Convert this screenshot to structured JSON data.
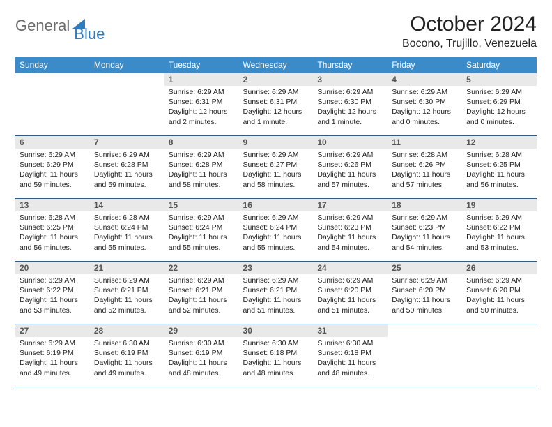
{
  "brand": {
    "text1": "General",
    "text2": "Blue"
  },
  "title": "October 2024",
  "location": "Bocono, Trujillo, Venezuela",
  "colors": {
    "header_bg": "#3b8bc8",
    "header_text": "#ffffff",
    "daynum_bg": "#e9e9e9",
    "border": "#2f5b84",
    "brand_gray": "#6b6b6b",
    "brand_blue": "#2f7bbf"
  },
  "fonts": {
    "title_size": 30,
    "location_size": 16,
    "dayhead_size": 12,
    "body_size": 10.5
  },
  "day_headers": [
    "Sunday",
    "Monday",
    "Tuesday",
    "Wednesday",
    "Thursday",
    "Friday",
    "Saturday"
  ],
  "weeks": [
    [
      {
        "n": "",
        "sr": "",
        "ss": "",
        "dl": ""
      },
      {
        "n": "",
        "sr": "",
        "ss": "",
        "dl": ""
      },
      {
        "n": "1",
        "sr": "Sunrise: 6:29 AM",
        "ss": "Sunset: 6:31 PM",
        "dl": "Daylight: 12 hours and 2 minutes."
      },
      {
        "n": "2",
        "sr": "Sunrise: 6:29 AM",
        "ss": "Sunset: 6:31 PM",
        "dl": "Daylight: 12 hours and 1 minute."
      },
      {
        "n": "3",
        "sr": "Sunrise: 6:29 AM",
        "ss": "Sunset: 6:30 PM",
        "dl": "Daylight: 12 hours and 1 minute."
      },
      {
        "n": "4",
        "sr": "Sunrise: 6:29 AM",
        "ss": "Sunset: 6:30 PM",
        "dl": "Daylight: 12 hours and 0 minutes."
      },
      {
        "n": "5",
        "sr": "Sunrise: 6:29 AM",
        "ss": "Sunset: 6:29 PM",
        "dl": "Daylight: 12 hours and 0 minutes."
      }
    ],
    [
      {
        "n": "6",
        "sr": "Sunrise: 6:29 AM",
        "ss": "Sunset: 6:29 PM",
        "dl": "Daylight: 11 hours and 59 minutes."
      },
      {
        "n": "7",
        "sr": "Sunrise: 6:29 AM",
        "ss": "Sunset: 6:28 PM",
        "dl": "Daylight: 11 hours and 59 minutes."
      },
      {
        "n": "8",
        "sr": "Sunrise: 6:29 AM",
        "ss": "Sunset: 6:28 PM",
        "dl": "Daylight: 11 hours and 58 minutes."
      },
      {
        "n": "9",
        "sr": "Sunrise: 6:29 AM",
        "ss": "Sunset: 6:27 PM",
        "dl": "Daylight: 11 hours and 58 minutes."
      },
      {
        "n": "10",
        "sr": "Sunrise: 6:29 AM",
        "ss": "Sunset: 6:26 PM",
        "dl": "Daylight: 11 hours and 57 minutes."
      },
      {
        "n": "11",
        "sr": "Sunrise: 6:28 AM",
        "ss": "Sunset: 6:26 PM",
        "dl": "Daylight: 11 hours and 57 minutes."
      },
      {
        "n": "12",
        "sr": "Sunrise: 6:28 AM",
        "ss": "Sunset: 6:25 PM",
        "dl": "Daylight: 11 hours and 56 minutes."
      }
    ],
    [
      {
        "n": "13",
        "sr": "Sunrise: 6:28 AM",
        "ss": "Sunset: 6:25 PM",
        "dl": "Daylight: 11 hours and 56 minutes."
      },
      {
        "n": "14",
        "sr": "Sunrise: 6:28 AM",
        "ss": "Sunset: 6:24 PM",
        "dl": "Daylight: 11 hours and 55 minutes."
      },
      {
        "n": "15",
        "sr": "Sunrise: 6:29 AM",
        "ss": "Sunset: 6:24 PM",
        "dl": "Daylight: 11 hours and 55 minutes."
      },
      {
        "n": "16",
        "sr": "Sunrise: 6:29 AM",
        "ss": "Sunset: 6:24 PM",
        "dl": "Daylight: 11 hours and 55 minutes."
      },
      {
        "n": "17",
        "sr": "Sunrise: 6:29 AM",
        "ss": "Sunset: 6:23 PM",
        "dl": "Daylight: 11 hours and 54 minutes."
      },
      {
        "n": "18",
        "sr": "Sunrise: 6:29 AM",
        "ss": "Sunset: 6:23 PM",
        "dl": "Daylight: 11 hours and 54 minutes."
      },
      {
        "n": "19",
        "sr": "Sunrise: 6:29 AM",
        "ss": "Sunset: 6:22 PM",
        "dl": "Daylight: 11 hours and 53 minutes."
      }
    ],
    [
      {
        "n": "20",
        "sr": "Sunrise: 6:29 AM",
        "ss": "Sunset: 6:22 PM",
        "dl": "Daylight: 11 hours and 53 minutes."
      },
      {
        "n": "21",
        "sr": "Sunrise: 6:29 AM",
        "ss": "Sunset: 6:21 PM",
        "dl": "Daylight: 11 hours and 52 minutes."
      },
      {
        "n": "22",
        "sr": "Sunrise: 6:29 AM",
        "ss": "Sunset: 6:21 PM",
        "dl": "Daylight: 11 hours and 52 minutes."
      },
      {
        "n": "23",
        "sr": "Sunrise: 6:29 AM",
        "ss": "Sunset: 6:21 PM",
        "dl": "Daylight: 11 hours and 51 minutes."
      },
      {
        "n": "24",
        "sr": "Sunrise: 6:29 AM",
        "ss": "Sunset: 6:20 PM",
        "dl": "Daylight: 11 hours and 51 minutes."
      },
      {
        "n": "25",
        "sr": "Sunrise: 6:29 AM",
        "ss": "Sunset: 6:20 PM",
        "dl": "Daylight: 11 hours and 50 minutes."
      },
      {
        "n": "26",
        "sr": "Sunrise: 6:29 AM",
        "ss": "Sunset: 6:20 PM",
        "dl": "Daylight: 11 hours and 50 minutes."
      }
    ],
    [
      {
        "n": "27",
        "sr": "Sunrise: 6:29 AM",
        "ss": "Sunset: 6:19 PM",
        "dl": "Daylight: 11 hours and 49 minutes."
      },
      {
        "n": "28",
        "sr": "Sunrise: 6:30 AM",
        "ss": "Sunset: 6:19 PM",
        "dl": "Daylight: 11 hours and 49 minutes."
      },
      {
        "n": "29",
        "sr": "Sunrise: 6:30 AM",
        "ss": "Sunset: 6:19 PM",
        "dl": "Daylight: 11 hours and 48 minutes."
      },
      {
        "n": "30",
        "sr": "Sunrise: 6:30 AM",
        "ss": "Sunset: 6:18 PM",
        "dl": "Daylight: 11 hours and 48 minutes."
      },
      {
        "n": "31",
        "sr": "Sunrise: 6:30 AM",
        "ss": "Sunset: 6:18 PM",
        "dl": "Daylight: 11 hours and 48 minutes."
      },
      {
        "n": "",
        "sr": "",
        "ss": "",
        "dl": ""
      },
      {
        "n": "",
        "sr": "",
        "ss": "",
        "dl": ""
      }
    ]
  ]
}
